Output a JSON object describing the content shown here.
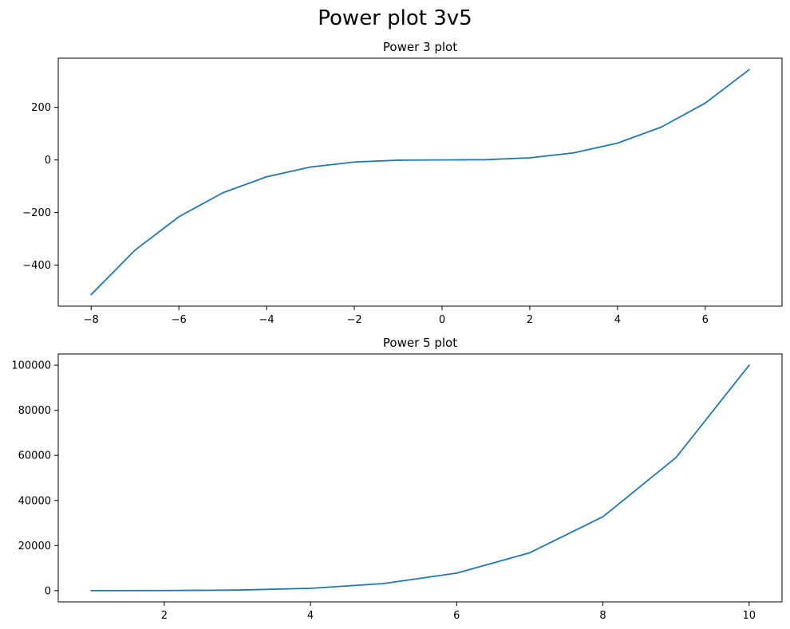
{
  "figure": {
    "suptitle": "Power plot 3v5"
  },
  "chart_data": [
    {
      "type": "line",
      "title": "Power 3 plot",
      "xlabel": "",
      "ylabel": "",
      "grid": false,
      "color": "#1f77b4",
      "x": [
        -8,
        -7,
        -6,
        -5,
        -4,
        -3,
        -2,
        -1,
        0,
        1,
        2,
        3,
        4,
        5,
        6,
        7
      ],
      "y": [
        -512,
        -343,
        -216,
        -125,
        -64,
        -27,
        -8,
        -1,
        0,
        1,
        8,
        27,
        64,
        125,
        216,
        343
      ],
      "xlim": [
        -8.75,
        7.75
      ],
      "ylim": [
        -555.75,
        386.75
      ],
      "xticks": [
        -8,
        -6,
        -4,
        -2,
        0,
        2,
        4,
        6
      ],
      "xtick_labels": [
        "−8",
        "−6",
        "−4",
        "−2",
        "0",
        "2",
        "4",
        "6"
      ],
      "yticks": [
        -400,
        -200,
        0,
        200
      ],
      "ytick_labels": [
        "−400",
        "−200",
        "0",
        "200"
      ]
    },
    {
      "type": "line",
      "title": "Power 5 plot",
      "xlabel": "",
      "ylabel": "",
      "grid": false,
      "color": "#1f77b4",
      "x": [
        1,
        2,
        3,
        4,
        5,
        6,
        7,
        8,
        9,
        10
      ],
      "y": [
        1,
        32,
        243,
        1024,
        3125,
        7776,
        16807,
        32768,
        59049,
        100000
      ],
      "xlim": [
        0.55,
        10.45
      ],
      "ylim": [
        -4999,
        105000
      ],
      "xticks": [
        2,
        4,
        6,
        8,
        10
      ],
      "xtick_labels": [
        "2",
        "4",
        "6",
        "8",
        "10"
      ],
      "yticks": [
        0,
        20000,
        40000,
        60000,
        80000,
        100000
      ],
      "ytick_labels": [
        "0",
        "20000",
        "40000",
        "60000",
        "80000",
        "100000"
      ]
    }
  ]
}
